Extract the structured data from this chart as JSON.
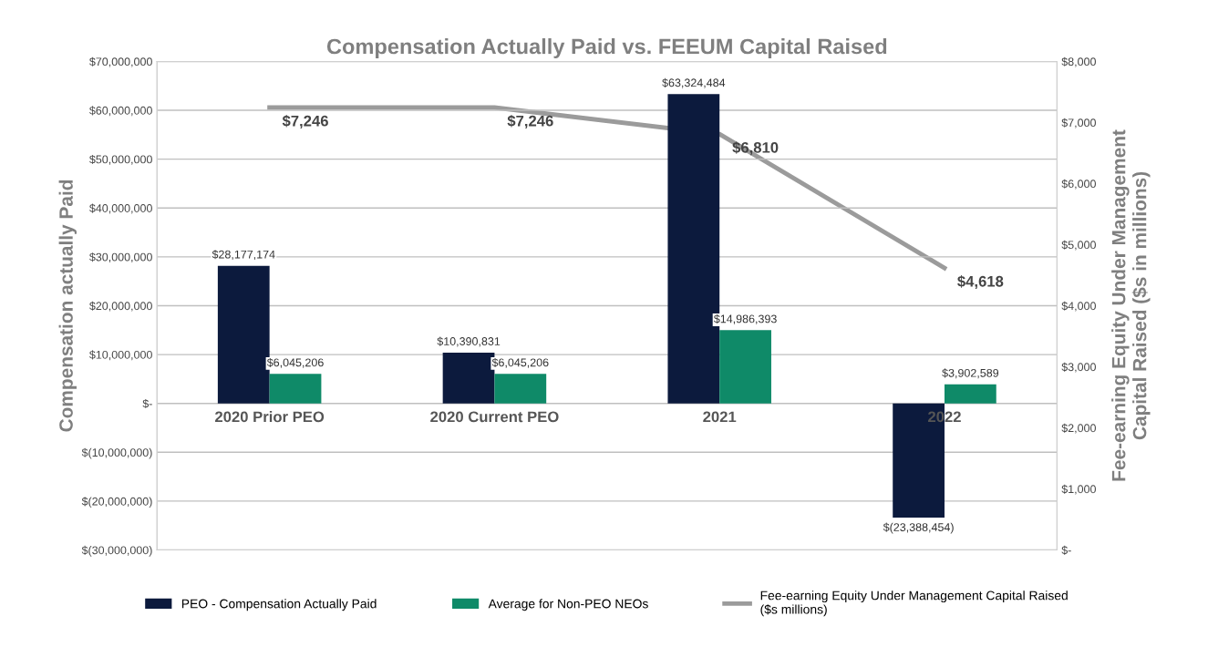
{
  "chart_data": {
    "type": "bar",
    "title": "Compensation Actually Paid vs. FEEUM Capital Raised",
    "ylabel": "Compensation actually Paid",
    "y2label": "Fee-earning Equity Under Management\nCapital Raised ($s in millions)",
    "categories": [
      "2020 Prior PEO",
      "2020 Current PEO",
      "2021",
      "2022"
    ],
    "series": [
      {
        "name": "PEO - Compensation Actually Paid",
        "color": "#0c1a3d",
        "values": [
          28177174,
          10390831,
          63324484,
          -23388454
        ],
        "value_labels": [
          "$28,177,174",
          "$10,390,831",
          "$63,324,484",
          "$(23,388,454)"
        ]
      },
      {
        "name": "Average for Non-PEO NEOs",
        "color": "#0f8a68",
        "values": [
          6045206,
          6045206,
          14986393,
          3902589
        ],
        "value_labels": [
          "$6,045,206",
          "$6,045,206",
          "$14,986,393",
          "$3,902,589"
        ]
      },
      {
        "name": "Fee-earning Equity Under Management Capital Raised\n($s millions)",
        "type": "line",
        "axis": "y2",
        "color": "#9b9b9b",
        "values": [
          7246,
          7246,
          6810,
          4618
        ],
        "value_labels": [
          "$7,246",
          "$7,246",
          "$6,810",
          "$4,618"
        ]
      }
    ],
    "ylim": [
      -30000000,
      70000000
    ],
    "yticks": [
      {
        "value": -30000000,
        "label": "$(30,000,000)"
      },
      {
        "value": -20000000,
        "label": "$(20,000,000)"
      },
      {
        "value": -10000000,
        "label": "$(10,000,000)"
      },
      {
        "value": 0,
        "label": "$-"
      },
      {
        "value": 10000000,
        "label": "$10,000,000"
      },
      {
        "value": 20000000,
        "label": "$20,000,000"
      },
      {
        "value": 30000000,
        "label": "$30,000,000"
      },
      {
        "value": 40000000,
        "label": "$40,000,000"
      },
      {
        "value": 50000000,
        "label": "$50,000,000"
      },
      {
        "value": 60000000,
        "label": "$60,000,000"
      },
      {
        "value": 70000000,
        "label": "$70,000,000"
      }
    ],
    "y2lim": [
      0,
      8000
    ],
    "y2ticks": [
      {
        "value": 0,
        "label": "$-"
      },
      {
        "value": 1000,
        "label": "$1,000"
      },
      {
        "value": 2000,
        "label": "$2,000"
      },
      {
        "value": 3000,
        "label": "$3,000"
      },
      {
        "value": 4000,
        "label": "$4,000"
      },
      {
        "value": 5000,
        "label": "$5,000"
      },
      {
        "value": 6000,
        "label": "$6,000"
      },
      {
        "value": 7000,
        "label": "$7,000"
      },
      {
        "value": 8000,
        "label": "$8,000"
      }
    ],
    "grid": "y",
    "legend": "bottom",
    "marker": "none",
    "line_style": "solid"
  }
}
